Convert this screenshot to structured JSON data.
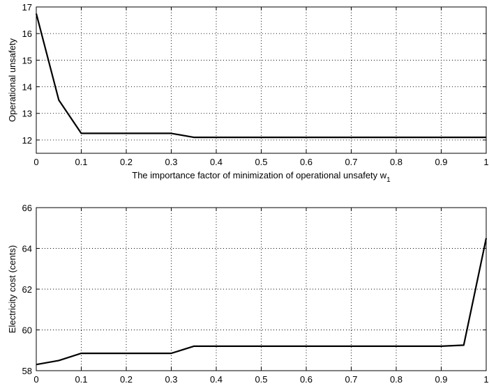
{
  "chart_data": [
    {
      "type": "line",
      "xlabel": "The importance factor of minimization of operational unsafety w",
      "xlabel_subscript": "1",
      "ylabel": "Operational unsafety",
      "xlim": [
        0,
        1
      ],
      "ylim": [
        11.5,
        17
      ],
      "grid": true,
      "x_ticks": [
        0,
        0.1,
        0.2,
        0.3,
        0.4,
        0.5,
        0.6,
        0.7,
        0.8,
        0.9,
        1
      ],
      "x_tick_labels": [
        "0",
        "0.1",
        "0.2",
        "0.3",
        "0.4",
        "0.5",
        "0.6",
        "0.7",
        "0.8",
        "0.9",
        "1"
      ],
      "y_ticks": [
        12,
        13,
        14,
        15,
        16,
        17
      ],
      "y_tick_labels": [
        "12",
        "13",
        "14",
        "15",
        "16",
        "17"
      ],
      "series": [
        {
          "color": "#000000",
          "x": [
            0,
            0.05,
            0.1,
            0.15,
            0.2,
            0.25,
            0.3,
            0.35,
            0.4,
            0.45,
            0.5,
            0.55,
            0.6,
            0.65,
            0.7,
            0.75,
            0.8,
            0.85,
            0.9,
            0.95,
            1
          ],
          "y": [
            16.75,
            13.5,
            12.25,
            12.25,
            12.25,
            12.25,
            12.25,
            12.1,
            12.1,
            12.1,
            12.1,
            12.1,
            12.1,
            12.1,
            12.1,
            12.1,
            12.1,
            12.1,
            12.1,
            12.1,
            12.1
          ]
        }
      ]
    },
    {
      "type": "line",
      "xlabel": "The importance factor of minimization of operational unsafety w",
      "xlabel_subscript": "1",
      "ylabel": "Electricity cost (cents)",
      "xlim": [
        0,
        1
      ],
      "ylim": [
        58,
        66
      ],
      "grid": true,
      "x_ticks": [
        0,
        0.1,
        0.2,
        0.3,
        0.4,
        0.5,
        0.6,
        0.7,
        0.8,
        0.9,
        1
      ],
      "x_tick_labels": [
        "0",
        "0.1",
        "0.2",
        "0.3",
        "0.4",
        "0.5",
        "0.6",
        "0.7",
        "0.8",
        "0.9",
        "1"
      ],
      "y_ticks": [
        58,
        60,
        62,
        64,
        66
      ],
      "y_tick_labels": [
        "58",
        "60",
        "62",
        "64",
        "66"
      ],
      "series": [
        {
          "color": "#000000",
          "x": [
            0,
            0.05,
            0.1,
            0.15,
            0.2,
            0.25,
            0.3,
            0.35,
            0.4,
            0.45,
            0.5,
            0.55,
            0.6,
            0.65,
            0.7,
            0.75,
            0.8,
            0.85,
            0.9,
            0.95,
            1
          ],
          "y": [
            58.3,
            58.5,
            58.85,
            58.85,
            58.85,
            58.85,
            58.85,
            59.2,
            59.2,
            59.2,
            59.2,
            59.2,
            59.2,
            59.2,
            59.2,
            59.2,
            59.2,
            59.2,
            59.2,
            59.25,
            64.5
          ]
        }
      ]
    }
  ]
}
